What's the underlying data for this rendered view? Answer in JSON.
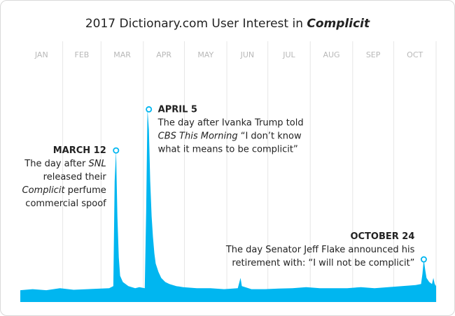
{
  "chart_data": {
    "type": "area",
    "title_parts": [
      {
        "text": "2017 Dictionary.com User Interest in ",
        "em": false
      },
      {
        "text": "Complicit",
        "em": true
      }
    ],
    "months": [
      "JAN",
      "FEB",
      "MAR",
      "APR",
      "MAY",
      "JUN",
      "JUL",
      "AUG",
      "SEP",
      "OCT"
    ],
    "x_range": [
      1,
      305
    ],
    "y_range": [
      0,
      100
    ],
    "grid": "vertical",
    "series": [
      {
        "color": "#00b6f0",
        "points": [
          [
            1,
            2
          ],
          [
            10,
            2.5
          ],
          [
            20,
            2
          ],
          [
            30,
            3
          ],
          [
            40,
            2.2
          ],
          [
            50,
            2.5
          ],
          [
            60,
            2.8
          ],
          [
            66,
            3
          ],
          [
            69,
            4
          ],
          [
            70,
            55
          ],
          [
            71,
            70
          ],
          [
            72,
            38
          ],
          [
            73,
            18
          ],
          [
            74,
            9
          ],
          [
            76,
            6
          ],
          [
            80,
            4
          ],
          [
            85,
            3
          ],
          [
            88,
            3.5
          ],
          [
            92,
            3
          ],
          [
            93,
            40
          ],
          [
            94,
            90
          ],
          [
            95,
            80
          ],
          [
            96,
            55
          ],
          [
            97,
            38
          ],
          [
            98,
            28
          ],
          [
            99,
            20
          ],
          [
            100,
            15
          ],
          [
            102,
            11
          ],
          [
            104,
            8
          ],
          [
            107,
            6
          ],
          [
            110,
            5
          ],
          [
            115,
            4
          ],
          [
            120,
            3.5
          ],
          [
            130,
            3
          ],
          [
            140,
            3
          ],
          [
            150,
            2.5
          ],
          [
            160,
            3
          ],
          [
            162,
            8
          ],
          [
            163,
            4
          ],
          [
            170,
            2.5
          ],
          [
            180,
            2.5
          ],
          [
            190,
            2.8
          ],
          [
            200,
            3
          ],
          [
            210,
            3.5
          ],
          [
            220,
            3
          ],
          [
            230,
            3
          ],
          [
            240,
            3
          ],
          [
            250,
            3.5
          ],
          [
            260,
            3
          ],
          [
            270,
            3.5
          ],
          [
            280,
            4
          ],
          [
            290,
            4.5
          ],
          [
            294,
            5
          ],
          [
            295,
            10
          ],
          [
            296,
            17
          ],
          [
            297,
            12
          ],
          [
            298,
            8
          ],
          [
            300,
            6
          ],
          [
            302,
            5
          ],
          [
            303,
            8
          ],
          [
            304,
            5
          ],
          [
            305,
            4
          ]
        ]
      }
    ],
    "annotations": [
      {
        "x": 71,
        "y": 70,
        "align": "right",
        "head": "MARCH 12",
        "lines": [
          [
            {
              "text": "The day after ",
              "em": false
            },
            {
              "text": "SNL",
              "em": true
            }
          ],
          [
            {
              "text": "released their",
              "em": false
            }
          ],
          [
            {
              "text": "Complicit",
              "em": true
            },
            {
              "text": " perfume",
              "em": false
            }
          ],
          [
            {
              "text": "commercial spoof",
              "em": false
            }
          ]
        ]
      },
      {
        "x": 95,
        "y": 90,
        "align": "left",
        "head": "APRIL 5",
        "lines": [
          [
            {
              "text": "The day after Ivanka Trump told",
              "em": false
            }
          ],
          [
            {
              "text": "CBS This Morning",
              "em": true
            },
            {
              "text": " “I don’t know",
              "em": false
            }
          ],
          [
            {
              "text": "what it means to be complicit”",
              "em": false
            }
          ]
        ]
      },
      {
        "x": 296,
        "y": 17,
        "align": "right",
        "head": "OCTOBER 24",
        "lines": [
          [
            {
              "text": "The day Senator Jeff Flake announced his",
              "em": false
            }
          ],
          [
            {
              "text": "retirement with: “I will not be complicit”",
              "em": false
            }
          ]
        ]
      }
    ]
  }
}
